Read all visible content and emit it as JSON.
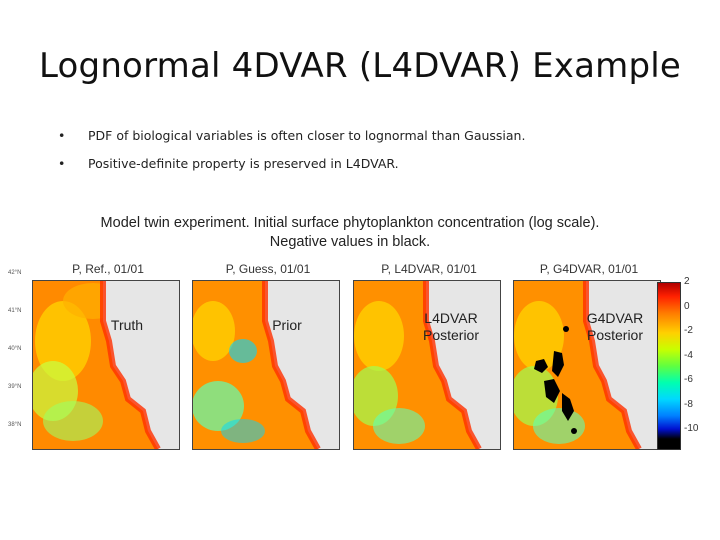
{
  "title": "Lognormal 4DVAR (L4DVAR) Example",
  "bullets": [
    "PDF of biological variables is often closer to lognormal than Gaussian.",
    "Positive-definite property is preserved in L4DVAR."
  ],
  "caption": {
    "line1": "Model twin experiment.  Initial surface phytoplankton concentration (log scale).",
    "line2": "Negative values in black."
  },
  "panels": [
    {
      "title": "P, Ref., 01/01",
      "label": "Truth"
    },
    {
      "title": "P, Guess, 01/01",
      "label": "Prior"
    },
    {
      "title": "P, L4DVAR, 01/01",
      "label": "L4DVAR Posterior"
    },
    {
      "title": "P, G4DVAR, 01/01",
      "label": "G4DVAR Posterior"
    }
  ],
  "lat_ticks": [
    "42°N",
    "41°N",
    "40°N",
    "39°N",
    "38°N"
  ],
  "colorbar": {
    "ticks": [
      "2",
      "0",
      "-2",
      "-4",
      "-6",
      "-8",
      "-10"
    ]
  },
  "colors": {
    "land": "#e6e6e6",
    "negative": "#000000"
  }
}
